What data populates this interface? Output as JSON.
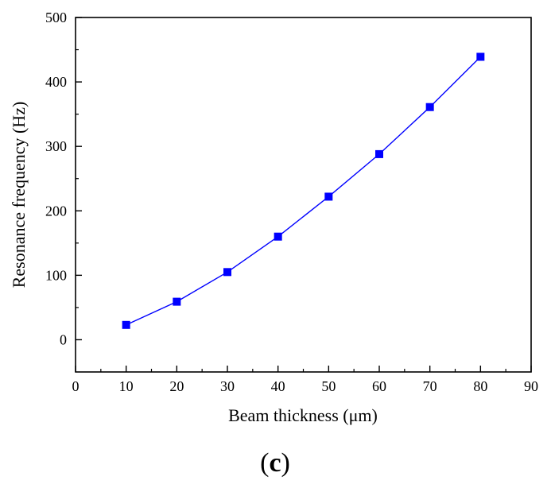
{
  "chart_data": {
    "type": "line",
    "xlabel": "Beam thickness (μm)",
    "ylabel": "Resonance frequency (Hz)",
    "xlim": [
      0,
      90
    ],
    "ylim": [
      -50,
      500
    ],
    "xticks": [
      0,
      10,
      20,
      30,
      40,
      50,
      60,
      70,
      80,
      90
    ],
    "yticks": [
      0,
      100,
      200,
      300,
      400,
      500
    ],
    "x": [
      10,
      20,
      30,
      40,
      50,
      60,
      70,
      80
    ],
    "series": [
      {
        "values": [
          23,
          59,
          105,
          160,
          222,
          288,
          361,
          439
        ],
        "color": "#0000ff",
        "marker": "square"
      }
    ],
    "grid": false,
    "legend": "none"
  },
  "caption": {
    "open": "(",
    "letter": "c",
    "close": ")"
  }
}
